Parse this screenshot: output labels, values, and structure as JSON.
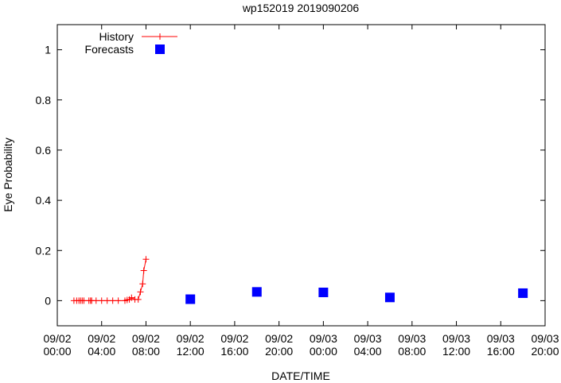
{
  "chart_data": {
    "type": "line",
    "title": "wp152019 2019090206",
    "xlabel": "DATE/TIME",
    "ylabel": "Eye Probability",
    "xlim_hours": [
      0,
      44
    ],
    "ylim": [
      -0.1,
      1.1
    ],
    "x_ticks": [
      {
        "h": 0,
        "l1": "09/02",
        "l2": "00:00"
      },
      {
        "h": 4,
        "l1": "09/02",
        "l2": "04:00"
      },
      {
        "h": 8,
        "l1": "09/02",
        "l2": "08:00"
      },
      {
        "h": 12,
        "l1": "09/02",
        "l2": "12:00"
      },
      {
        "h": 16,
        "l1": "09/02",
        "l2": "16:00"
      },
      {
        "h": 20,
        "l1": "09/02",
        "l2": "20:00"
      },
      {
        "h": 24,
        "l1": "09/03",
        "l2": "00:00"
      },
      {
        "h": 28,
        "l1": "09/03",
        "l2": "04:00"
      },
      {
        "h": 32,
        "l1": "09/03",
        "l2": "08:00"
      },
      {
        "h": 36,
        "l1": "09/03",
        "l2": "12:00"
      },
      {
        "h": 40,
        "l1": "09/03",
        "l2": "16:00"
      },
      {
        "h": 44,
        "l1": "09/03",
        "l2": "20:00"
      }
    ],
    "y_ticks": [
      {
        "v": 0,
        "l": "0"
      },
      {
        "v": 0.2,
        "l": "0.2"
      },
      {
        "v": 0.4,
        "l": "0.4"
      },
      {
        "v": 0.6,
        "l": "0.6"
      },
      {
        "v": 0.8,
        "l": "0.8"
      },
      {
        "v": 1,
        "l": "1"
      }
    ],
    "legend": "top-left",
    "series": [
      {
        "name": "History",
        "color": "#ff0000",
        "style": "line+cross",
        "x_hours": [
          1.5,
          1.75,
          1.95,
          2.1,
          2.25,
          2.4,
          2.85,
          3.0,
          3.1,
          3.5,
          4.0,
          4.5,
          5.0,
          5.5,
          6.1,
          6.3,
          6.5,
          6.7,
          7.0,
          7.3,
          7.5,
          7.7,
          7.8,
          8.0
        ],
        "values": [
          0,
          0,
          0,
          0,
          0,
          0,
          0,
          0,
          0,
          0,
          0,
          0,
          0,
          0,
          0,
          0.003,
          0.005,
          0.012,
          0.005,
          0.005,
          0.035,
          0.067,
          0.12,
          0.165
        ]
      },
      {
        "name": "Forecasts",
        "color": "#0000ff",
        "style": "square",
        "x_hours": [
          12,
          18,
          24,
          30,
          42
        ],
        "values": [
          0.006,
          0.035,
          0.033,
          0.013,
          0.03
        ]
      }
    ]
  }
}
